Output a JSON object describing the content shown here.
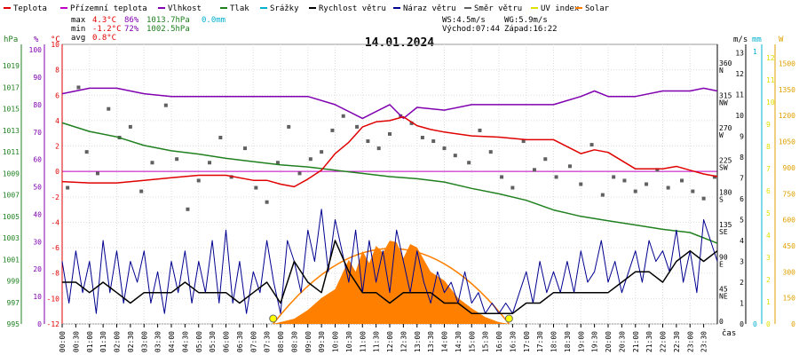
{
  "chart_data": {
    "type": "line",
    "title": "14.01.2024",
    "legend": [
      {
        "label": "Teplota",
        "color": "#e00000"
      },
      {
        "label": "Přízemní teplota",
        "color": "#c000c0"
      },
      {
        "label": "Vlhkost",
        "color": "#8000b0"
      },
      {
        "label": "Tlak",
        "color": "#208020"
      },
      {
        "label": "Srážky",
        "color": "#00b0d0"
      },
      {
        "label": "Rychlost větru",
        "color": "#000000"
      },
      {
        "label": "Náraz větru",
        "color": "#000090"
      },
      {
        "label": "Směr větru",
        "color": "#606060"
      },
      {
        "label": "UV index",
        "color": "#e0e000"
      },
      {
        "label": "Solar",
        "color": "#ff8000"
      }
    ],
    "stats": {
      "max": {
        "label": "max",
        "temp": "4.3°C",
        "hum": "86%",
        "press": "1013.7hPa",
        "rain": "0.0mm"
      },
      "min": {
        "label": "min",
        "temp": "-1.2°C",
        "hum": "72%",
        "press": "1002.5hPa"
      },
      "avg": {
        "label": "avg",
        "temp": "0.8°C"
      },
      "ws": "WS:4.5m/s",
      "wg": "WG:5.9m/s",
      "sunrise": "Východ:07:44",
      "sunset": "Západ:16:22"
    },
    "axes": {
      "hpa": {
        "unit": "hPa",
        "ticks": [
          "995",
          "997",
          "999",
          "1001",
          "1003",
          "1005",
          "1007",
          "1009",
          "1011",
          "1013",
          "1015",
          "1017",
          "1019"
        ]
      },
      "pct": {
        "unit": "%",
        "ticks": [
          "0",
          "10",
          "20",
          "30",
          "40",
          "50",
          "60",
          "70",
          "80",
          "90",
          "100"
        ]
      },
      "temp": {
        "unit": "°C",
        "ticks": [
          "-12",
          "-10",
          "-8",
          "-6",
          "-4",
          "-2",
          "0",
          "2",
          "4",
          "6",
          "8",
          "10"
        ]
      },
      "dir": {
        "ticks": [
          "0",
          "45\nNE",
          "90\nE",
          "135\nSE",
          "180\nS",
          "225\nSW",
          "270\nW",
          "315\nNW",
          "360\nN"
        ]
      },
      "ms": {
        "unit": "m/s",
        "ticks": [
          "0",
          "1",
          "2",
          "3",
          "4",
          "5",
          "6",
          "7",
          "8",
          "9",
          "10",
          "11",
          "12",
          "13"
        ]
      },
      "mm": {
        "unit": "mm",
        "ticks": [
          "0",
          "1"
        ]
      },
      "w": {
        "unit": "W",
        "ticks": [
          "0",
          "150",
          "300",
          "450",
          "600",
          "750",
          "900",
          "1050",
          "1200",
          "1350",
          "1500"
        ]
      },
      "time": {
        "label": "čas",
        "ticks": [
          "00:00",
          "00:30",
          "01:00",
          "01:30",
          "02:00",
          "02:30",
          "03:00",
          "03:30",
          "04:00",
          "04:30",
          "05:00",
          "05:30",
          "06:00",
          "06:30",
          "07:00",
          "07:30",
          "08:00",
          "08:30",
          "09:00",
          "09:30",
          "10:00",
          "10:30",
          "11:00",
          "11:30",
          "12:00",
          "12:30",
          "13:00",
          "13:30",
          "14:00",
          "14:30",
          "15:00",
          "15:30",
          "16:00",
          "16:30",
          "17:00",
          "17:30",
          "18:00",
          "18:30",
          "19:00",
          "19:30",
          "20:00",
          "20:30",
          "21:00",
          "21:30",
          "22:00",
          "22:30",
          "23:00",
          "23:30"
        ]
      }
    },
    "series": [
      {
        "name": "Teplota",
        "unit": "°C",
        "hours": [
          0,
          1,
          2,
          3,
          4,
          5,
          6,
          7,
          7.5,
          8,
          8.5,
          9,
          9.5,
          10,
          10.5,
          11,
          11.5,
          12,
          12.5,
          13,
          13.5,
          14,
          15,
          16,
          17,
          18,
          19,
          19.5,
          20,
          21,
          22,
          22.5,
          23,
          23.5,
          24
        ],
        "values": [
          -0.8,
          -0.9,
          -0.9,
          -0.7,
          -0.5,
          -0.3,
          -0.3,
          -0.7,
          -0.7,
          -1.0,
          -1.2,
          -0.6,
          0.1,
          1.4,
          2.3,
          3.5,
          3.9,
          4.0,
          4.3,
          3.6,
          3.3,
          3.1,
          2.8,
          2.7,
          2.5,
          2.5,
          1.4,
          1.7,
          1.5,
          0.2,
          0.2,
          0.4,
          0.1,
          -0.2,
          -0.4
        ]
      },
      {
        "name": "Přízemní teplota",
        "unit": "°C",
        "hours": [
          0,
          24
        ],
        "values": [
          0,
          0
        ]
      },
      {
        "name": "Vlhkost",
        "unit": "%",
        "hours": [
          0,
          0.5,
          1,
          2,
          3,
          4,
          5,
          6,
          7,
          8,
          9,
          10,
          11,
          12,
          12.5,
          13,
          14,
          15,
          16,
          17,
          18,
          19,
          19.5,
          20,
          21,
          22,
          22.5,
          23,
          23.5,
          24
        ],
        "values": [
          84,
          85,
          86,
          86,
          84,
          83,
          83,
          83,
          83,
          83,
          83,
          80,
          75,
          80,
          75,
          79,
          78,
          80,
          80,
          80,
          80,
          83,
          85,
          83,
          83,
          85,
          85,
          85,
          86,
          85
        ]
      },
      {
        "name": "Tlak",
        "unit": "hPa",
        "hours": [
          0,
          1,
          2,
          3,
          4,
          5,
          6,
          7,
          8,
          9,
          10,
          11,
          12,
          13,
          14,
          15,
          16,
          17,
          18,
          19,
          20,
          21,
          22,
          23,
          24
        ],
        "values": [
          1013.7,
          1012.9,
          1012.4,
          1011.6,
          1011.1,
          1010.8,
          1010.4,
          1010.1,
          1009.8,
          1009.6,
          1009.3,
          1009.0,
          1008.7,
          1008.5,
          1008.2,
          1007.6,
          1007.1,
          1006.5,
          1005.6,
          1005.0,
          1004.6,
          1004.2,
          1003.8,
          1003.5,
          1002.5
        ]
      },
      {
        "name": "Srážky",
        "unit": "mm",
        "hours": [
          0,
          24
        ],
        "values": [
          0,
          0
        ]
      },
      {
        "name": "Rychlost větru",
        "unit": "m/s",
        "hours": [
          0,
          0.5,
          1,
          1.5,
          2,
          2.5,
          3,
          3.5,
          4,
          4.5,
          5,
          5.5,
          6,
          6.5,
          7,
          7.5,
          8,
          8.5,
          9,
          9.5,
          10,
          10.5,
          11,
          11.5,
          12,
          12.5,
          13,
          13.5,
          14,
          14.5,
          15,
          15.5,
          16,
          16.5,
          17,
          17.5,
          18,
          18.5,
          19,
          19.5,
          20,
          20.5,
          21,
          21.5,
          22,
          22.5,
          23,
          23.5,
          24
        ],
        "values": [
          2.0,
          2.0,
          1.5,
          2.0,
          1.5,
          1.0,
          1.5,
          1.5,
          1.5,
          2.0,
          1.5,
          1.5,
          1.5,
          1.0,
          1.5,
          2.0,
          1.0,
          3.0,
          2.0,
          1.5,
          4.0,
          2.5,
          1.5,
          1.5,
          1.0,
          1.5,
          1.5,
          1.5,
          1.0,
          1.0,
          0.5,
          0.5,
          0.5,
          0.5,
          1.0,
          1.0,
          1.5,
          1.5,
          1.5,
          1.5,
          1.5,
          2.0,
          2.5,
          2.5,
          2.0,
          3.0,
          3.5,
          3.0,
          3.5
        ]
      },
      {
        "name": "Náraz větru",
        "unit": "m/s",
        "hours": [
          0,
          0.25,
          0.5,
          0.75,
          1,
          1.25,
          1.5,
          1.75,
          2,
          2.25,
          2.5,
          2.75,
          3,
          3.25,
          3.5,
          3.75,
          4,
          4.25,
          4.5,
          4.75,
          5,
          5.25,
          5.5,
          5.75,
          6,
          6.25,
          6.5,
          6.75,
          7,
          7.25,
          7.5,
          7.75,
          8,
          8.25,
          8.5,
          8.75,
          9,
          9.25,
          9.5,
          9.75,
          10,
          10.25,
          10.5,
          10.75,
          11,
          11.25,
          11.5,
          11.75,
          12,
          12.25,
          12.5,
          12.75,
          13,
          13.25,
          13.5,
          13.75,
          14,
          14.25,
          14.5,
          14.75,
          15,
          15.25,
          15.5,
          15.75,
          16,
          16.25,
          16.5,
          16.75,
          17,
          17.25,
          17.5,
          17.75,
          18,
          18.25,
          18.5,
          18.75,
          19,
          19.25,
          19.5,
          19.75,
          20,
          20.25,
          20.5,
          20.75,
          21,
          21.25,
          21.5,
          21.75,
          22,
          22.25,
          22.5,
          22.75,
          23,
          23.25,
          23.5,
          23.75,
          24
        ],
        "values": [
          3.0,
          1.0,
          3.5,
          1.5,
          3.0,
          0.5,
          4.0,
          1.5,
          3.5,
          1.0,
          3.0,
          2.0,
          3.5,
          1.0,
          2.5,
          0.5,
          3.0,
          1.5,
          3.5,
          1.0,
          3.0,
          1.5,
          4.0,
          1.0,
          4.5,
          1.0,
          3.0,
          0.5,
          2.5,
          1.5,
          4.0,
          2.0,
          0.5,
          4.0,
          3.0,
          1.5,
          4.5,
          3.0,
          5.5,
          2.5,
          5.0,
          3.5,
          2.0,
          4.5,
          1.5,
          4.0,
          2.0,
          3.5,
          1.5,
          4.5,
          3.0,
          1.5,
          3.5,
          2.0,
          1.0,
          2.5,
          1.5,
          2.0,
          1.0,
          2.5,
          1.0,
          1.5,
          0.5,
          1.0,
          0.5,
          1.0,
          0.5,
          1.5,
          2.5,
          1.0,
          3.0,
          1.5,
          2.5,
          1.5,
          3.0,
          1.5,
          3.5,
          2.0,
          2.5,
          4.0,
          2.0,
          3.0,
          1.5,
          2.5,
          3.5,
          2.0,
          4.0,
          3.0,
          3.5,
          2.5,
          4.5,
          2.0,
          3.5,
          1.5,
          5.0,
          4.0,
          3.0
        ]
      },
      {
        "name": "Směr větru",
        "unit": "°",
        "type": "scatter",
        "hours": [
          0.2,
          0.6,
          0.9,
          1.3,
          1.7,
          2.1,
          2.5,
          2.9,
          3.3,
          3.8,
          4.2,
          4.6,
          5.0,
          5.4,
          5.8,
          6.2,
          6.7,
          7.1,
          7.5,
          7.9,
          8.3,
          8.7,
          9.1,
          9.5,
          9.9,
          10.3,
          10.8,
          11.2,
          11.6,
          12.0,
          12.4,
          12.8,
          13.2,
          13.6,
          14.0,
          14.4,
          14.9,
          15.3,
          15.7,
          16.1,
          16.5,
          16.9,
          17.3,
          17.7,
          18.1,
          18.6,
          19.0,
          19.4,
          19.8,
          20.2,
          20.6,
          21.0,
          21.4,
          21.8,
          22.2,
          22.7,
          23.1,
          23.5,
          23.9
        ],
        "values": [
          190,
          330,
          240,
          210,
          300,
          260,
          275,
          185,
          225,
          305,
          230,
          160,
          200,
          225,
          260,
          205,
          245,
          190,
          170,
          225,
          275,
          210,
          230,
          240,
          270,
          290,
          275,
          255,
          245,
          265,
          290,
          280,
          260,
          255,
          245,
          235,
          225,
          270,
          240,
          205,
          190,
          255,
          215,
          230,
          205,
          220,
          195,
          250,
          180,
          205,
          200,
          185,
          195,
          215,
          190,
          200,
          185,
          175,
          205
        ]
      },
      {
        "name": "UV index",
        "unit": "",
        "hours": [
          7.73,
          16.37
        ],
        "values": [
          0,
          0
        ]
      },
      {
        "name": "Solar",
        "unit": "W",
        "type": "area",
        "hours": [
          7.73,
          8.5,
          9,
          9.5,
          10,
          10.5,
          10.75,
          11,
          11.25,
          11.5,
          11.75,
          12,
          12.25,
          12.5,
          12.75,
          13,
          13.5,
          14,
          14.5,
          15,
          15.5,
          16,
          16.37
        ],
        "values": [
          0,
          30,
          80,
          150,
          200,
          370,
          300,
          420,
          350,
          450,
          410,
          480,
          470,
          380,
          460,
          440,
          300,
          250,
          150,
          90,
          40,
          10,
          0
        ]
      }
    ]
  }
}
